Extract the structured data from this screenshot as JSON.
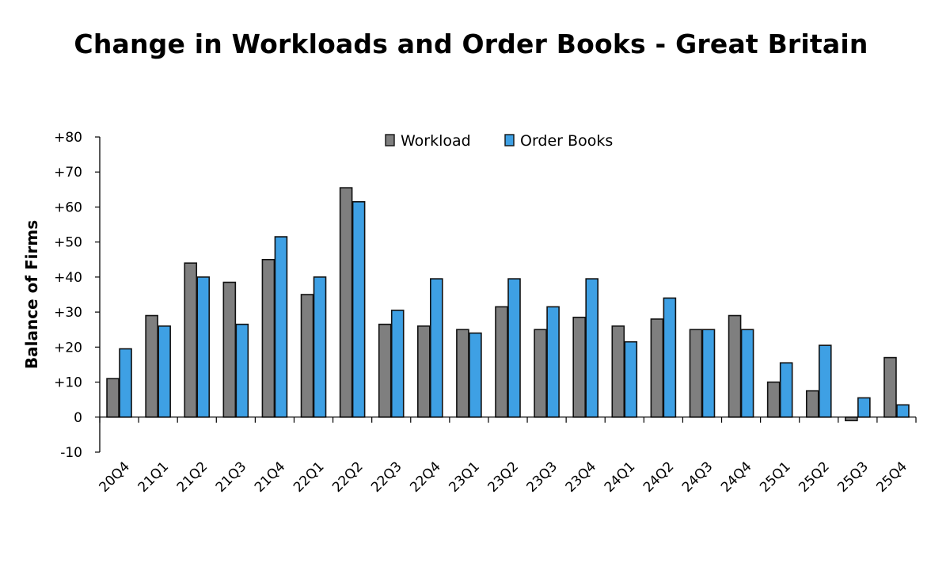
{
  "chart_data": {
    "type": "bar",
    "title": "Change in Workloads and Order Books - Great Britain",
    "ylabel": "Balance of Firms",
    "xlabel": "",
    "ylim": [
      -10,
      80
    ],
    "ytick_labels": [
      "-10",
      "0",
      "+10",
      "+20",
      "+30",
      "+40",
      "+50",
      "+60",
      "+70",
      "+80"
    ],
    "grid": false,
    "legend_position": "top-center",
    "categories": [
      "20Q4",
      "21Q1",
      "21Q2",
      "21Q3",
      "21Q4",
      "22Q1",
      "22Q2",
      "22Q3",
      "22Q4",
      "23Q1",
      "23Q2",
      "23Q3",
      "23Q4",
      "24Q1",
      "24Q2",
      "24Q3",
      "24Q4",
      "25Q1",
      "25Q2",
      "25Q3",
      "25Q4"
    ],
    "series": [
      {
        "name": "Workload",
        "color": "#7f7f7f",
        "values": [
          11,
          29,
          44,
          38.5,
          45,
          35,
          65.5,
          26.5,
          26,
          25,
          31.5,
          25,
          28.5,
          26,
          28,
          25,
          29,
          10,
          7.5,
          -1,
          17
        ]
      },
      {
        "name": "Order Books",
        "color": "#3ea0e4",
        "values": [
          19.5,
          26,
          40,
          26.5,
          51.5,
          40,
          61.5,
          30.5,
          39.5,
          24,
          39.5,
          31.5,
          39.5,
          21.5,
          34,
          25,
          25,
          15.5,
          20.5,
          5.5,
          3.5
        ]
      }
    ]
  }
}
